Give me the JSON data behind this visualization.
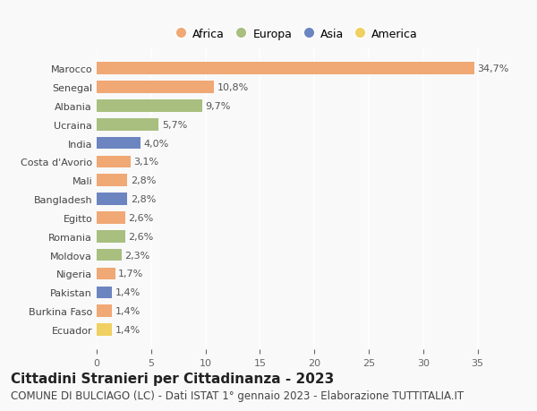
{
  "countries": [
    "Marocco",
    "Senegal",
    "Albania",
    "Ucraina",
    "India",
    "Costa d'Avorio",
    "Mali",
    "Bangladesh",
    "Egitto",
    "Romania",
    "Moldova",
    "Nigeria",
    "Pakistan",
    "Burkina Faso",
    "Ecuador"
  ],
  "values": [
    34.7,
    10.8,
    9.7,
    5.7,
    4.0,
    3.1,
    2.8,
    2.8,
    2.6,
    2.6,
    2.3,
    1.7,
    1.4,
    1.4,
    1.4
  ],
  "labels": [
    "34,7%",
    "10,8%",
    "9,7%",
    "5,7%",
    "4,0%",
    "3,1%",
    "2,8%",
    "2,8%",
    "2,6%",
    "2,6%",
    "2,3%",
    "1,7%",
    "1,4%",
    "1,4%",
    "1,4%"
  ],
  "continents": [
    "Africa",
    "Africa",
    "Europa",
    "Europa",
    "Asia",
    "Africa",
    "Africa",
    "Asia",
    "Africa",
    "Europa",
    "Europa",
    "Africa",
    "Asia",
    "Africa",
    "America"
  ],
  "continent_colors": {
    "Africa": "#F0A875",
    "Europa": "#A8BF80",
    "Asia": "#6C85C0",
    "America": "#F0D060"
  },
  "legend_order": [
    "Africa",
    "Europa",
    "Asia",
    "America"
  ],
  "title": "Cittadini Stranieri per Cittadinanza - 2023",
  "subtitle": "COMUNE DI BULCIAGO (LC) - Dati ISTAT 1° gennaio 2023 - Elaborazione TUTTITALIA.IT",
  "xlim": [
    0,
    37
  ],
  "xticks": [
    0,
    5,
    10,
    15,
    20,
    25,
    30,
    35
  ],
  "background_color": "#f9f9f9",
  "bar_height": 0.65,
  "title_fontsize": 11,
  "subtitle_fontsize": 8.5,
  "label_fontsize": 8,
  "tick_fontsize": 8,
  "legend_fontsize": 9
}
